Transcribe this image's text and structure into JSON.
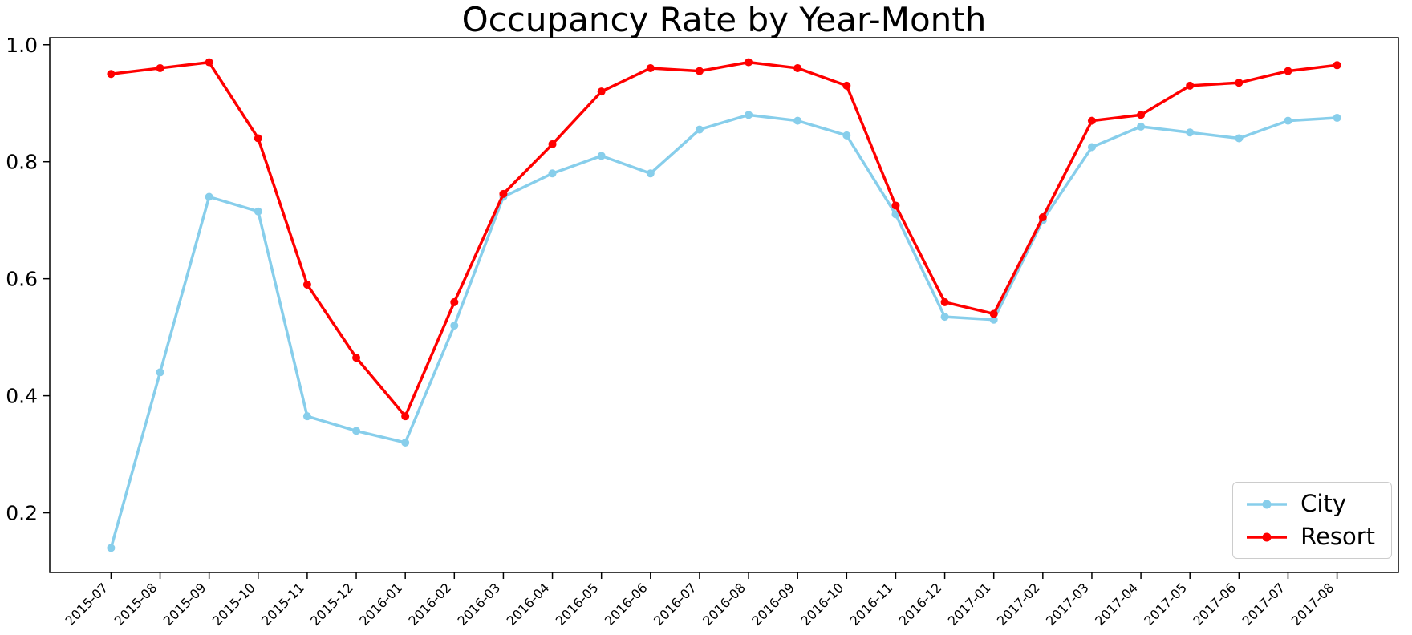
{
  "chart_data": {
    "type": "line",
    "title": "Occupancy Rate by Year-Month",
    "xlabel": "",
    "ylabel": "",
    "grid": false,
    "legend_position": "lower right",
    "ylim": [
      0.098,
      1.012
    ],
    "yticks": [
      0.2,
      0.4,
      0.6,
      0.8,
      1.0
    ],
    "categories": [
      "2015-07",
      "2015-08",
      "2015-09",
      "2015-10",
      "2015-11",
      "2015-12",
      "2016-01",
      "2016-02",
      "2016-03",
      "2016-04",
      "2016-05",
      "2016-06",
      "2016-07",
      "2016-08",
      "2016-09",
      "2016-10",
      "2016-11",
      "2016-12",
      "2017-01",
      "2017-02",
      "2017-03",
      "2017-04",
      "2017-05",
      "2017-06",
      "2017-07",
      "2017-08"
    ],
    "series": [
      {
        "name": "City",
        "color": "#87CEEB",
        "values": [
          0.14,
          0.44,
          0.74,
          0.715,
          0.365,
          0.34,
          0.32,
          0.52,
          0.74,
          0.78,
          0.81,
          0.78,
          0.855,
          0.88,
          0.87,
          0.845,
          0.71,
          0.535,
          0.53,
          0.7,
          0.825,
          0.86,
          0.85,
          0.84,
          0.87,
          0.875
        ]
      },
      {
        "name": "Resort",
        "color": "#FF0000",
        "values": [
          0.95,
          0.96,
          0.97,
          0.84,
          0.59,
          0.465,
          0.365,
          0.56,
          0.745,
          0.83,
          0.92,
          0.96,
          0.955,
          0.97,
          0.96,
          0.93,
          0.725,
          0.56,
          0.54,
          0.705,
          0.87,
          0.88,
          0.93,
          0.935,
          0.955,
          0.965
        ]
      }
    ]
  }
}
